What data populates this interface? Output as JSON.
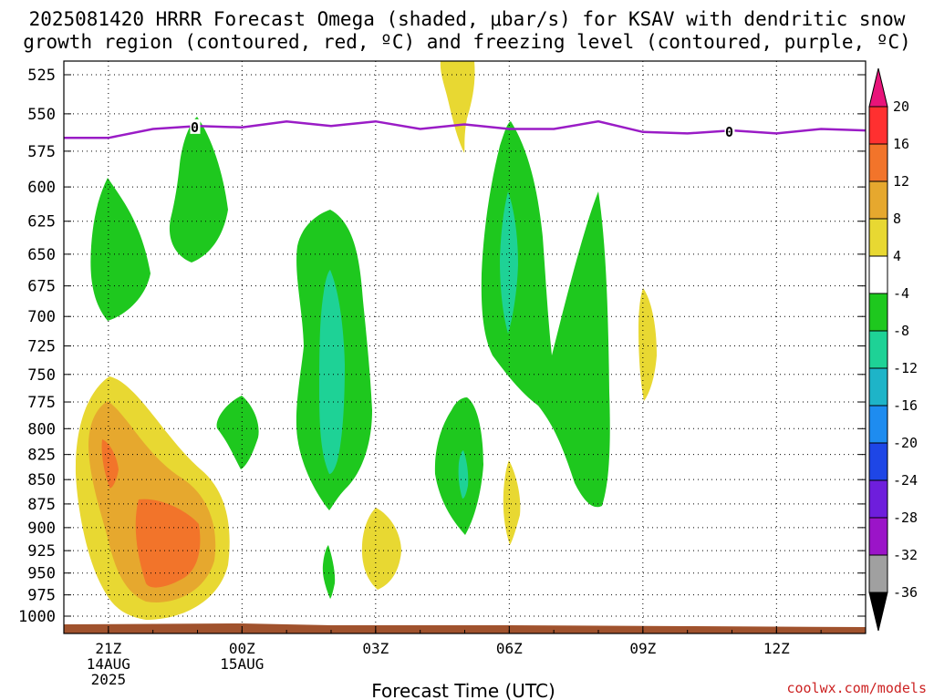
{
  "chart_data": {
    "type": "heatmap",
    "title_line1": "2025081420 HRRR Forecast Omega (shaded, μbar/s) for KSAV with dendritic snow",
    "title_line2": "growth region (contoured, red, ºC) and freezing level (contoured, purple, ºC)",
    "xlabel": "Forecast Time (UTC)",
    "credit": "coolwx.com/models",
    "y_ticks": [
      "525",
      "550",
      "575",
      "600",
      "625",
      "650",
      "675",
      "700",
      "725",
      "750",
      "775",
      "800",
      "825",
      "850",
      "875",
      "900",
      "925",
      "950",
      "975",
      "1000"
    ],
    "y_axis": "pressure (hPa), log-scaled, inverted",
    "x_ticks": [
      {
        "hour": 1,
        "lines": [
          "21Z",
          "14AUG",
          "2025"
        ]
      },
      {
        "hour": 4,
        "lines": [
          "00Z",
          "15AUG"
        ]
      },
      {
        "hour": 7,
        "lines": [
          "03Z"
        ]
      },
      {
        "hour": 10,
        "lines": [
          "06Z"
        ]
      },
      {
        "hour": 13,
        "lines": [
          "09Z"
        ]
      },
      {
        "hour": 16,
        "lines": [
          "12Z"
        ]
      }
    ],
    "x_range_hours": [
      0,
      18
    ],
    "grid": true,
    "colorbar": {
      "labels": [
        "20",
        "16",
        "12",
        "8",
        "4",
        "-4",
        "-8",
        "-12",
        "-16",
        "-20",
        "-24",
        "-28",
        "-32",
        "-36"
      ],
      "colors": [
        "#e8147a",
        "#ff3030",
        "#f2742a",
        "#e6a82e",
        "#e8d832",
        "#ffffff",
        "#1ec81e",
        "#1ed296",
        "#1eb4c8",
        "#1e8cf0",
        "#1e46e6",
        "#6e1edc",
        "#9b14c8",
        "#a0a0a0",
        "#000000"
      ]
    },
    "freezing_level": {
      "label": "0",
      "color": "#9a1cc6",
      "hours": [
        0,
        1,
        2,
        3,
        4,
        5,
        6,
        7,
        8,
        9,
        10,
        11,
        12,
        13,
        14,
        15,
        16,
        17,
        18
      ],
      "pressure": [
        566,
        566,
        560,
        558,
        559,
        555,
        558,
        555,
        560,
        557,
        560,
        560,
        555,
        562,
        563,
        561,
        563,
        560,
        561
      ]
    },
    "surface_color": "#a0522d"
  }
}
